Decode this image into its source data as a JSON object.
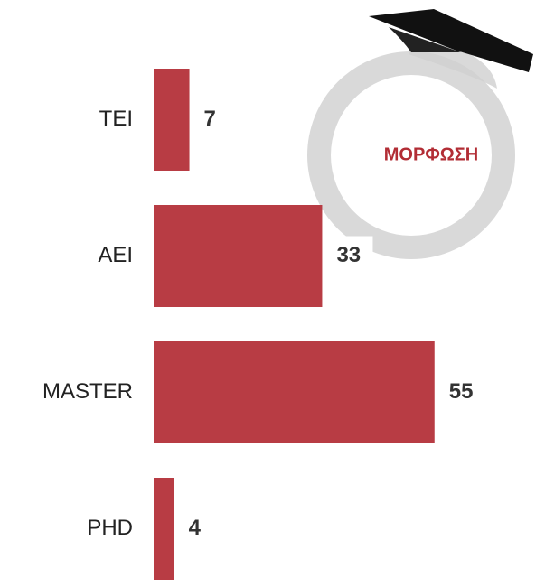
{
  "chart_data": {
    "type": "bar",
    "orientation": "horizontal",
    "title": "ΜΟΡΦΩΣΗ",
    "categories": [
      "TEI",
      "AEI",
      "MASTER",
      "PHD"
    ],
    "values": [
      7,
      33,
      55,
      4
    ],
    "color": "#b83c44"
  }
}
